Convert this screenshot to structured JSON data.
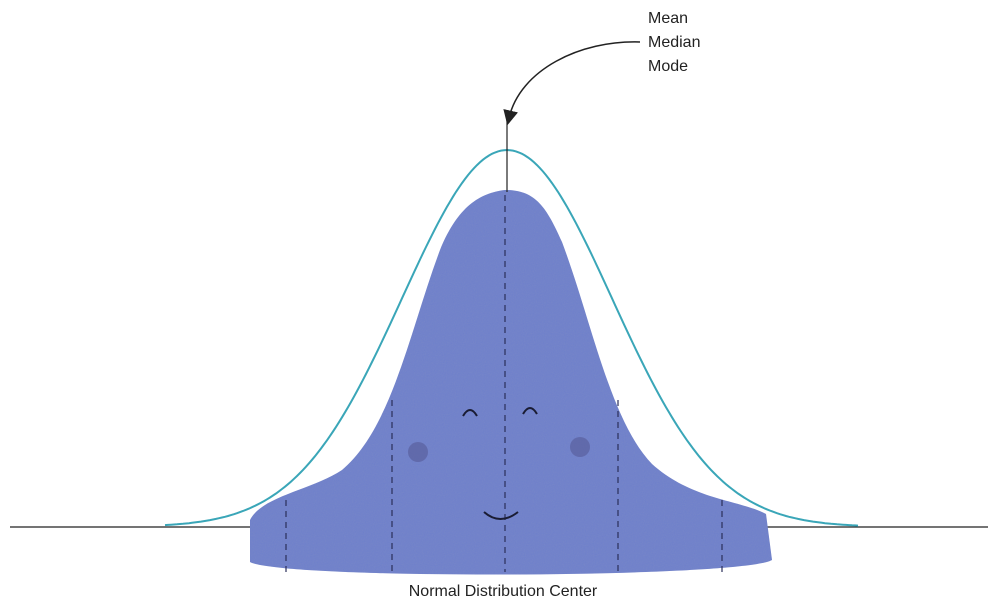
{
  "annotation": {
    "lines": [
      "Mean",
      "Median",
      "Mode"
    ]
  },
  "caption": "Normal Distribution Center"
}
